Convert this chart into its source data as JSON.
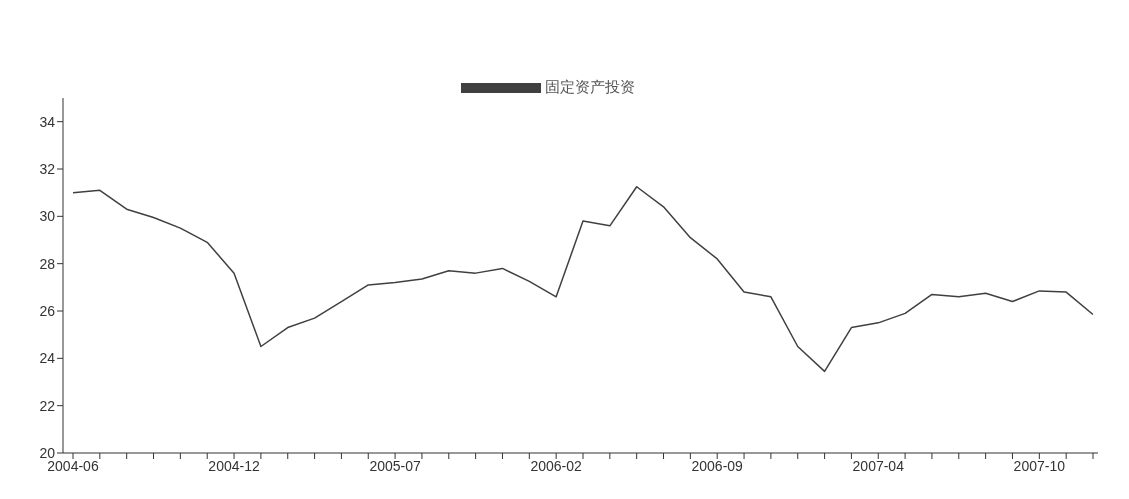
{
  "chart_data": {
    "type": "line",
    "categories": [
      "2004-06",
      null,
      null,
      null,
      null,
      null,
      "2004-12",
      null,
      null,
      null,
      null,
      null,
      "2005-07",
      null,
      null,
      null,
      null,
      null,
      "2006-02",
      null,
      null,
      null,
      null,
      null,
      "2006-09",
      null,
      null,
      null,
      null,
      null,
      "2007-04",
      null,
      null,
      null,
      null,
      null,
      "2007-10",
      null,
      null
    ],
    "series": [
      {
        "name": "固定资产投资",
        "color": "#404040",
        "values": [
          31.0,
          31.1,
          30.3,
          29.95,
          29.5,
          28.9,
          27.6,
          24.5,
          25.3,
          25.7,
          26.4,
          27.1,
          27.2,
          27.35,
          27.7,
          27.6,
          27.8,
          27.25,
          26.6,
          29.8,
          29.6,
          31.25,
          30.4,
          29.1,
          28.2,
          26.8,
          26.6,
          24.5,
          23.45,
          25.3,
          25.5,
          25.9,
          26.7,
          26.6,
          26.75,
          26.4,
          26.85,
          26.8,
          25.85
        ]
      }
    ],
    "ylim": [
      20,
      35
    ],
    "yticks": [
      20,
      22,
      24,
      26,
      28,
      30,
      32,
      34
    ],
    "grid": false,
    "legend": "top",
    "marker": "none",
    "line_style": "solid"
  }
}
